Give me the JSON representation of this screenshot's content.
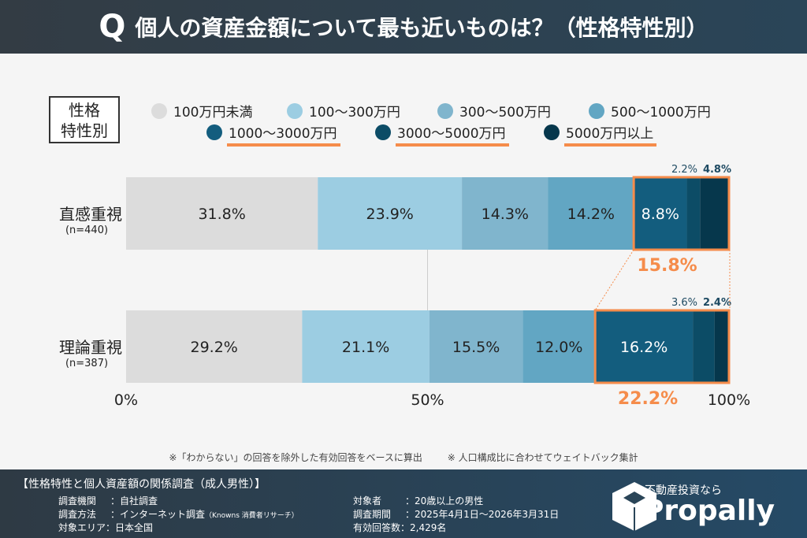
{
  "header": {
    "q": "Q",
    "title": "個人の資産金額について最も近いものは？（性格特性別）"
  },
  "legend_label": [
    "性格",
    "特性別"
  ],
  "colors": {
    "accent": "#f58c4b",
    "text_dark": "#1e4a62"
  },
  "chart_data": {
    "type": "bar",
    "orientation": "horizontal",
    "stacked": true,
    "categories": [
      {
        "name": "直感重視",
        "n": "(n=440)"
      },
      {
        "name": "理論重視",
        "n": "(n=387)"
      }
    ],
    "series": [
      {
        "name": "100万円未満",
        "color": "#dcdcdc",
        "values": [
          31.8,
          29.2
        ],
        "labels": [
          "31.8%",
          "29.2%"
        ],
        "highlight": false
      },
      {
        "name": "100～300万円",
        "color": "#9ccde2",
        "values": [
          23.9,
          21.1
        ],
        "labels": [
          "23.9%",
          "21.1%"
        ],
        "highlight": false
      },
      {
        "name": "300～500万円",
        "color": "#80b5cd",
        "values": [
          14.3,
          15.5
        ],
        "labels": [
          "14.3%",
          "15.5%"
        ],
        "highlight": false
      },
      {
        "name": "500～1000万円",
        "color": "#62a6c3",
        "values": [
          14.2,
          12.0
        ],
        "labels": [
          "14.2%",
          "12.0%"
        ],
        "highlight": false
      },
      {
        "name": "1000～3000万円",
        "color": "#135d7e",
        "values": [
          8.8,
          16.2
        ],
        "labels": [
          "8.8%",
          "16.2%"
        ],
        "highlight": true
      },
      {
        "name": "3000～5000万円",
        "color": "#0c4c66",
        "values": [
          2.2,
          3.6
        ],
        "labels": [
          "2.2%",
          "3.6%"
        ],
        "highlight": true
      },
      {
        "name": "5000万円以上",
        "color": "#06374c",
        "values": [
          4.8,
          2.4
        ],
        "labels": [
          "4.8%",
          "2.4%"
        ],
        "highlight": true
      }
    ],
    "highlight_totals": [
      "15.8%",
      "22.2%"
    ],
    "xlim": [
      0,
      100
    ],
    "xticks": [
      "0%",
      "50%",
      "100%"
    ]
  },
  "note": [
    "※「わからない」の回答を除外した有効回答をベースに算出",
    "※ 人口構成比に合わせてウェイトバック集計"
  ],
  "footer": {
    "title": "【性格特性と個人資産額の関係調査（成人男性）】",
    "items": [
      {
        "k": "調査機関",
        "v": "：自社調査"
      },
      {
        "k": "調査方法",
        "v": "：インターネット調査",
        "sub": "（Knowns 消費者リサーチ）"
      },
      {
        "k": "対象エリア",
        "v": "：日本全国"
      },
      {
        "k": "対象者",
        "v": "：20歳以上の男性"
      },
      {
        "k": "調査期間",
        "v": "：2025年4月1日～2026年3月31日"
      },
      {
        "k": "有効回答数",
        "v": "：2,429名"
      }
    ],
    "logo_tag": "不動産投資なら",
    "logo_name": "Propally"
  }
}
